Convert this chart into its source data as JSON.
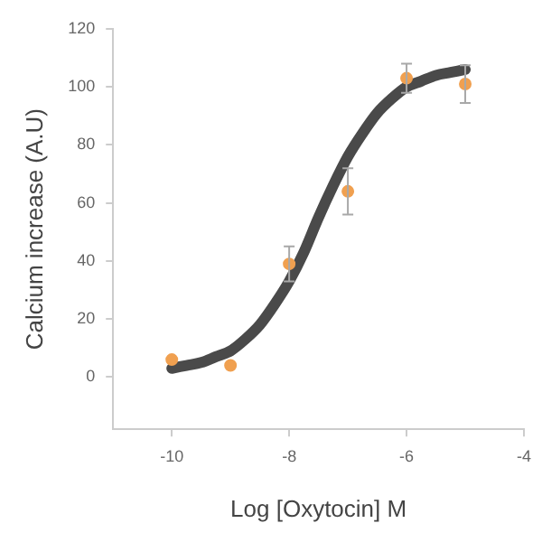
{
  "chart_data": {
    "type": "scatter",
    "xlabel": "Log [Oxytocin] M",
    "ylabel": "Calcium increase (A.U)",
    "xlim": [
      -11,
      -4
    ],
    "xticks": [
      -10,
      -8,
      -6,
      -4
    ],
    "ylim": [
      -18,
      120
    ],
    "yticks": [
      0,
      20,
      40,
      60,
      80,
      100,
      120
    ],
    "grid": false,
    "legend": false,
    "series": [
      {
        "type": "line",
        "color": "#4a4a4a",
        "marker": "none",
        "x": [
          -10,
          -9.75,
          -9.5,
          -9.25,
          -9,
          -8.75,
          -8.5,
          -8.25,
          -8,
          -7.75,
          -7.5,
          -7.25,
          -7,
          -6.75,
          -6.5,
          -6.25,
          -6,
          -5.75,
          -5.5,
          -5.25,
          -5
        ],
        "values": [
          3,
          4,
          5,
          7,
          9,
          13,
          18,
          25,
          33,
          43,
          55,
          66,
          76,
          84,
          91,
          96,
          100,
          102,
          104,
          105,
          106
        ]
      },
      {
        "type": "scatter",
        "color": "#f0a050",
        "marker": "circle",
        "x": [
          -10,
          -9,
          -8,
          -7,
          -6,
          -5
        ],
        "values": [
          6,
          4,
          39,
          64,
          103,
          101
        ],
        "errors": [
          null,
          null,
          6,
          8,
          5,
          6.5
        ]
      }
    ]
  }
}
